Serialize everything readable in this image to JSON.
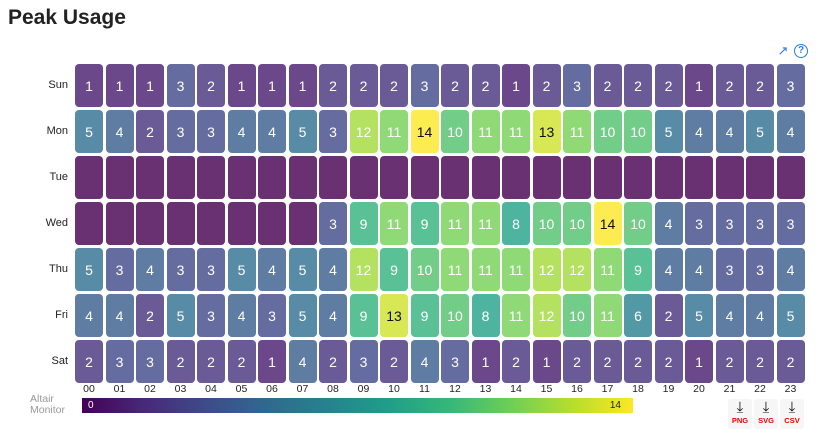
{
  "title": "Peak Usage",
  "icons": {
    "external": "external-link-icon",
    "help": "help-icon"
  },
  "chart_data": {
    "type": "heatmap",
    "title": "Peak Usage",
    "x": [
      "00",
      "01",
      "02",
      "03",
      "04",
      "05",
      "06",
      "07",
      "08",
      "09",
      "10",
      "11",
      "12",
      "13",
      "14",
      "15",
      "16",
      "17",
      "18",
      "19",
      "20",
      "21",
      "22",
      "23"
    ],
    "y": [
      "Sun",
      "Mon",
      "Tue",
      "Wed",
      "Thu",
      "Fri",
      "Sat"
    ],
    "values": [
      [
        1,
        1,
        1,
        3,
        2,
        1,
        1,
        1,
        2,
        2,
        2,
        3,
        2,
        2,
        1,
        2,
        3,
        2,
        2,
        2,
        1,
        2,
        2,
        3
      ],
      [
        5,
        4,
        2,
        3,
        3,
        4,
        4,
        5,
        3,
        12,
        11,
        14,
        10,
        11,
        11,
        13,
        11,
        10,
        10,
        5,
        4,
        4,
        5,
        4
      ],
      [
        null,
        null,
        null,
        null,
        null,
        null,
        null,
        null,
        null,
        null,
        null,
        null,
        null,
        null,
        null,
        null,
        null,
        null,
        null,
        null,
        null,
        null,
        null,
        null
      ],
      [
        null,
        null,
        null,
        null,
        null,
        null,
        null,
        null,
        3,
        9,
        11,
        9,
        11,
        11,
        8,
        10,
        10,
        14,
        10,
        4,
        3,
        3,
        3,
        3
      ],
      [
        5,
        3,
        4,
        3,
        3,
        5,
        4,
        5,
        4,
        12,
        9,
        10,
        11,
        11,
        11,
        12,
        12,
        11,
        9,
        4,
        4,
        3,
        3,
        4
      ],
      [
        4,
        4,
        2,
        5,
        3,
        4,
        3,
        5,
        4,
        9,
        13,
        9,
        10,
        8,
        11,
        12,
        10,
        11,
        6,
        2,
        5,
        4,
        4,
        5
      ],
      [
        2,
        3,
        3,
        2,
        2,
        2,
        1,
        4,
        2,
        3,
        2,
        4,
        3,
        1,
        2,
        1,
        2,
        2,
        2,
        2,
        1,
        2,
        2,
        2
      ]
    ],
    "color_scale": "viridis",
    "range": [
      0,
      14
    ],
    "legend": {
      "title": "Altair Monitor",
      "min": "0",
      "max": "14",
      "placement": "bottom"
    }
  },
  "downloads": [
    {
      "label": "PNG",
      "icon": "cloud-download-icon"
    },
    {
      "label": "SVG",
      "icon": "cloud-download-icon"
    },
    {
      "label": "CSV",
      "icon": "cloud-download-icon"
    }
  ]
}
